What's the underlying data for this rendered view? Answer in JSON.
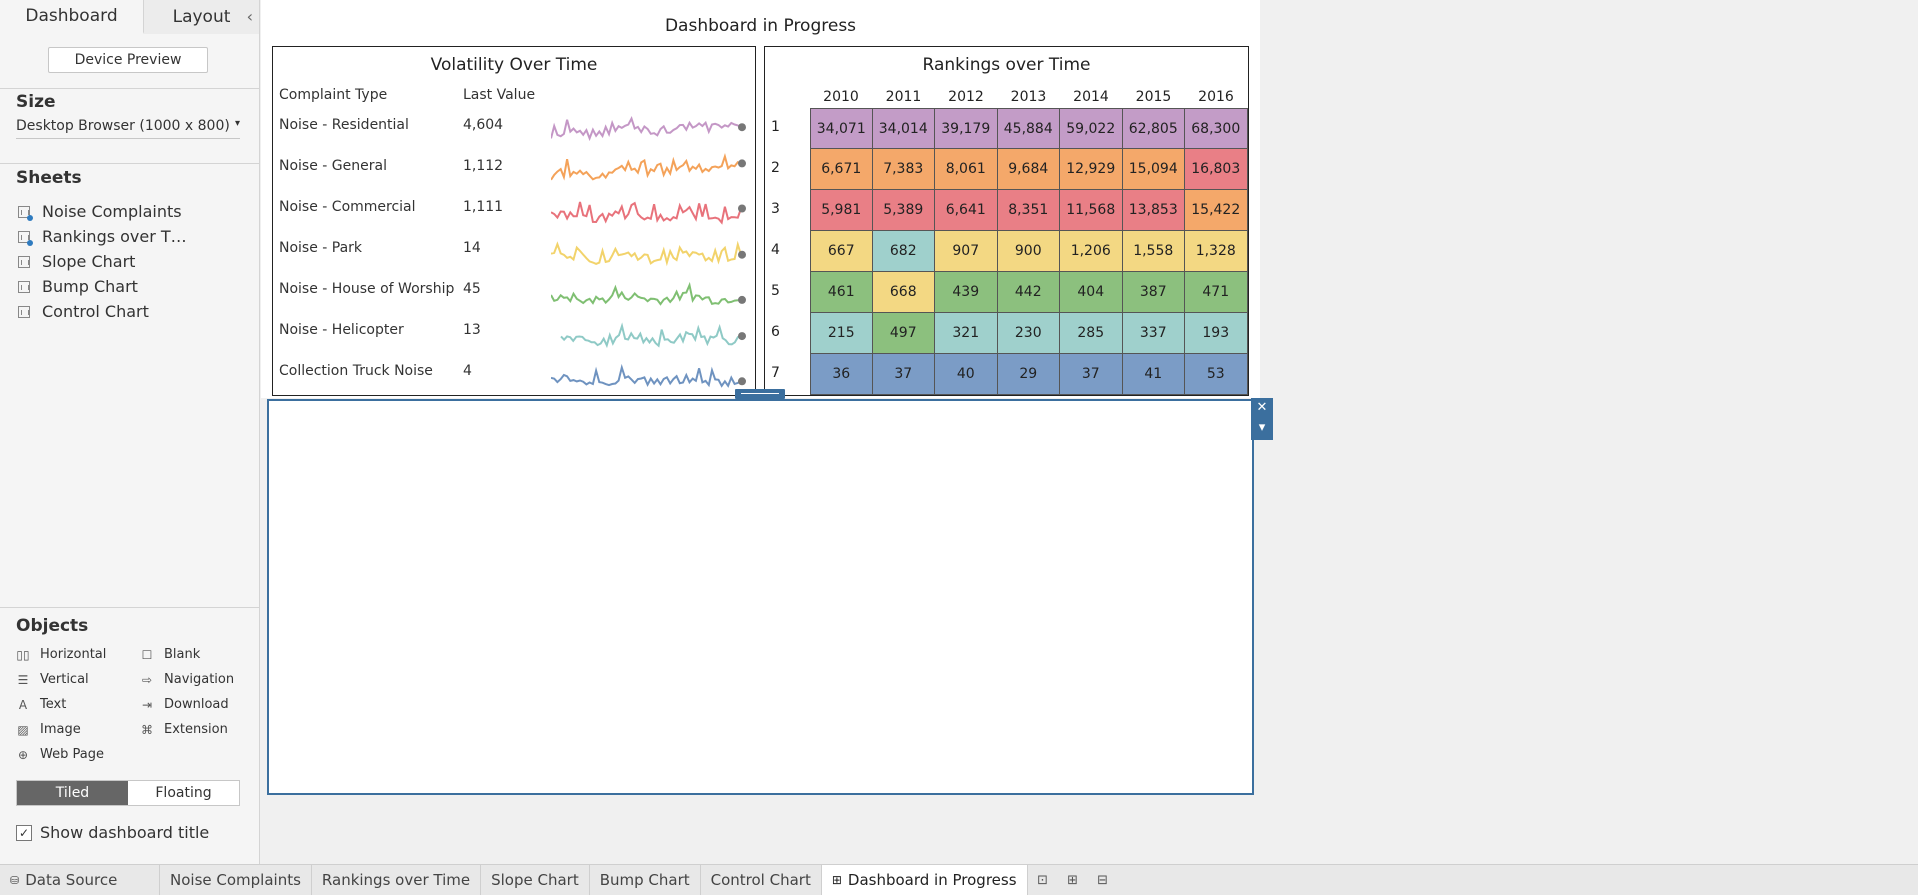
{
  "left_panel": {
    "tabs": [
      "Dashboard",
      "Layout"
    ],
    "collapse_icon": "chevron-left-icon",
    "device_preview": "Device Preview",
    "size_label": "Size",
    "size_value": "Desktop Browser (1000 x 800)",
    "sheets_label": "Sheets",
    "sheets": [
      {
        "label": "Noise Complaints",
        "used": true
      },
      {
        "label": "Rankings over T…",
        "used": true
      },
      {
        "label": "Slope Chart",
        "used": false
      },
      {
        "label": "Bump Chart",
        "used": false
      },
      {
        "label": "Control Chart",
        "used": false
      }
    ],
    "objects_label": "Objects",
    "objects": [
      {
        "label": "Horizontal",
        "icon": "horizontal-icon",
        "glyph": "▯▯"
      },
      {
        "label": "Blank",
        "icon": "blank-icon",
        "glyph": "☐"
      },
      {
        "label": "Vertical",
        "icon": "vertical-icon",
        "glyph": "☰"
      },
      {
        "label": "Navigation",
        "icon": "navigation-icon",
        "glyph": "⇨"
      },
      {
        "label": "Text",
        "icon": "text-icon",
        "glyph": "A"
      },
      {
        "label": "Download",
        "icon": "download-icon",
        "glyph": "⇥"
      },
      {
        "label": "Image",
        "icon": "image-icon",
        "glyph": "▨"
      },
      {
        "label": "Extension",
        "icon": "extension-icon",
        "glyph": "⌘"
      },
      {
        "label": "Web Page",
        "icon": "web-page-icon",
        "glyph": "⊕"
      }
    ],
    "tiled": "Tiled",
    "floating": "Floating",
    "show_title": "Show dashboard title",
    "show_title_checked": "✓"
  },
  "dashboard": {
    "title": "Dashboard in Progress",
    "volatility": {
      "title": "Volatility Over Time",
      "col_type": "Complaint Type",
      "col_last": "Last Value",
      "rows": [
        {
          "name": "Noise - Residential",
          "last": "4,604",
          "color": "#c497c6"
        },
        {
          "name": "Noise - General",
          "last": "1,112",
          "color": "#f4a259"
        },
        {
          "name": "Noise - Commercial",
          "last": "1,111",
          "color": "#e8727b"
        },
        {
          "name": "Noise - Park",
          "last": "14",
          "color": "#f2d36b"
        },
        {
          "name": "Noise - House of Worship",
          "last": "45",
          "color": "#7fbf72"
        },
        {
          "name": "Noise - Helicopter",
          "last": "13",
          "color": "#8fcac6"
        },
        {
          "name": "Collection Truck Noise",
          "last": "4",
          "color": "#6f93c0"
        }
      ]
    },
    "rankings": {
      "title": "Rankings over Time",
      "years": [
        "2010",
        "2011",
        "2012",
        "2013",
        "2014",
        "2015",
        "2016"
      ],
      "ranks": [
        "1",
        "2",
        "3",
        "4",
        "5",
        "6",
        "7"
      ],
      "palette": {
        "purple": "#c39cc7",
        "orange": "#f4a86a",
        "red": "#e97f86",
        "yellow": "#f3d883",
        "green": "#8cc07e",
        "teal": "#9fd0cc",
        "blue": "#7b9cc6"
      },
      "cells": [
        [
          {
            "v": "34,071",
            "c": "purple"
          },
          {
            "v": "34,014",
            "c": "purple"
          },
          {
            "v": "39,179",
            "c": "purple"
          },
          {
            "v": "45,884",
            "c": "purple"
          },
          {
            "v": "59,022",
            "c": "purple"
          },
          {
            "v": "62,805",
            "c": "purple"
          },
          {
            "v": "68,300",
            "c": "purple"
          }
        ],
        [
          {
            "v": "6,671",
            "c": "orange"
          },
          {
            "v": "7,383",
            "c": "orange"
          },
          {
            "v": "8,061",
            "c": "orange"
          },
          {
            "v": "9,684",
            "c": "orange"
          },
          {
            "v": "12,929",
            "c": "orange"
          },
          {
            "v": "15,094",
            "c": "orange"
          },
          {
            "v": "16,803",
            "c": "red"
          }
        ],
        [
          {
            "v": "5,981",
            "c": "red"
          },
          {
            "v": "5,389",
            "c": "red"
          },
          {
            "v": "6,641",
            "c": "red"
          },
          {
            "v": "8,351",
            "c": "red"
          },
          {
            "v": "11,568",
            "c": "red"
          },
          {
            "v": "13,853",
            "c": "red"
          },
          {
            "v": "15,422",
            "c": "orange"
          }
        ],
        [
          {
            "v": "667",
            "c": "yellow"
          },
          {
            "v": "682",
            "c": "teal"
          },
          {
            "v": "907",
            "c": "yellow"
          },
          {
            "v": "900",
            "c": "yellow"
          },
          {
            "v": "1,206",
            "c": "yellow"
          },
          {
            "v": "1,558",
            "c": "yellow"
          },
          {
            "v": "1,328",
            "c": "yellow"
          }
        ],
        [
          {
            "v": "461",
            "c": "green"
          },
          {
            "v": "668",
            "c": "yellow"
          },
          {
            "v": "439",
            "c": "green"
          },
          {
            "v": "442",
            "c": "green"
          },
          {
            "v": "404",
            "c": "green"
          },
          {
            "v": "387",
            "c": "green"
          },
          {
            "v": "471",
            "c": "green"
          }
        ],
        [
          {
            "v": "215",
            "c": "teal"
          },
          {
            "v": "497",
            "c": "green"
          },
          {
            "v": "321",
            "c": "teal"
          },
          {
            "v": "230",
            "c": "teal"
          },
          {
            "v": "285",
            "c": "teal"
          },
          {
            "v": "337",
            "c": "teal"
          },
          {
            "v": "193",
            "c": "teal"
          }
        ],
        [
          {
            "v": "36",
            "c": "blue"
          },
          {
            "v": "37",
            "c": "blue"
          },
          {
            "v": "40",
            "c": "blue"
          },
          {
            "v": "29",
            "c": "blue"
          },
          {
            "v": "37",
            "c": "blue"
          },
          {
            "v": "41",
            "c": "blue"
          },
          {
            "v": "53",
            "c": "blue"
          }
        ]
      ]
    }
  },
  "selection_tools": {
    "close": "✕",
    "menu": "▾"
  },
  "bottom_tabs": {
    "data_source": "Data Source",
    "sheets": [
      "Noise Complaints",
      "Rankings over Time",
      "Slope Chart",
      "Bump Chart",
      "Control Chart"
    ],
    "active": "Dashboard in Progress",
    "new_icons": [
      "new-worksheet-icon",
      "new-dashboard-icon",
      "new-story-icon"
    ]
  }
}
